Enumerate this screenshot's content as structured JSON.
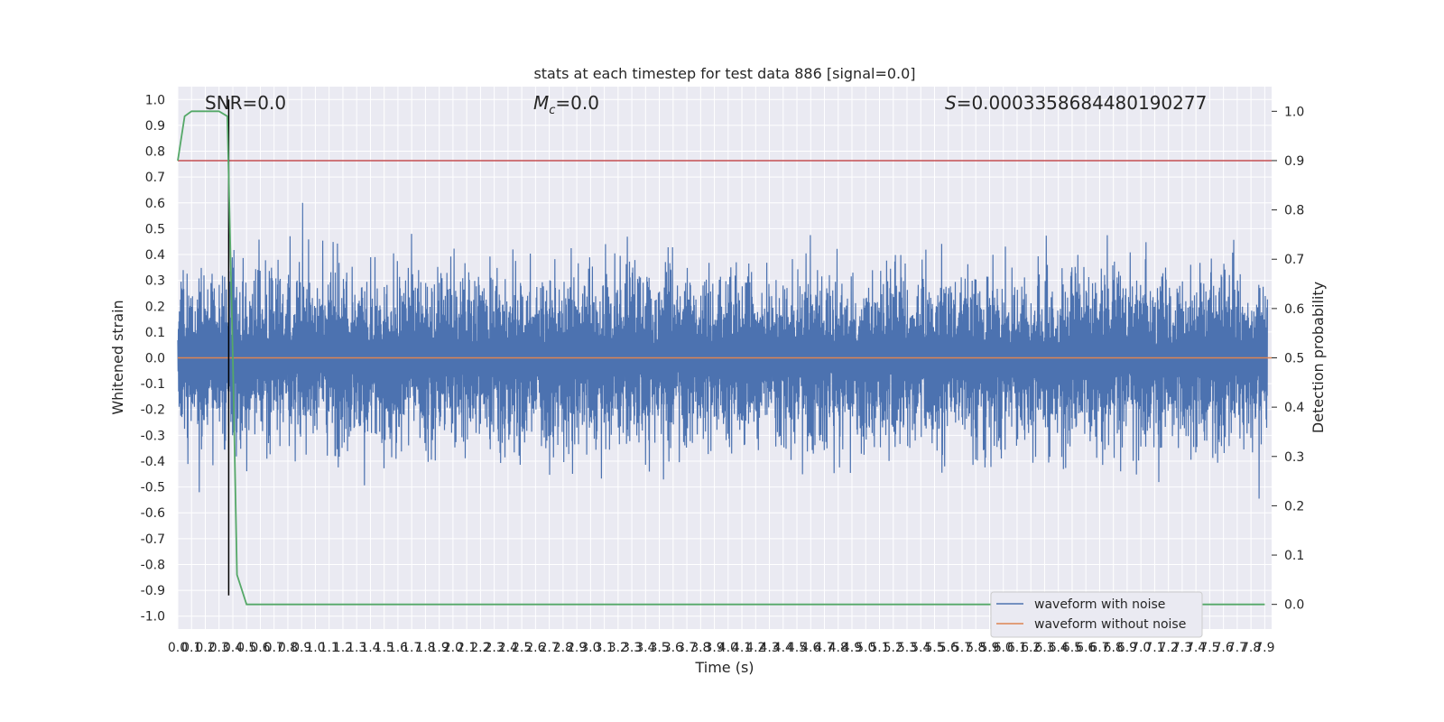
{
  "chart_data": {
    "type": "line",
    "title": "stats at each timestep for test data 886 [signal=0.0]",
    "annotations": {
      "snr": "SNR=0.0",
      "mc_symbol": "M",
      "mc_subscript": "c",
      "mc_value": "=0.0",
      "s_symbol": "S",
      "s_value": "=0.0003358684480190277"
    },
    "xlabel": "Time (s)",
    "ylabel_left": "Whitened strain",
    "ylabel_right": "Detection probability",
    "xlim": [
      0.0,
      7.95
    ],
    "ylim_left": [
      -1.05,
      1.05
    ],
    "ylim_right": [
      -0.05,
      1.05
    ],
    "x_ticks": [
      "0.0",
      "0.1",
      "0.2",
      "0.3",
      "0.4",
      "0.5",
      "0.6",
      "0.7",
      "0.8",
      "0.9",
      "1.0",
      "1.1",
      "1.2",
      "1.3",
      "1.4",
      "1.5",
      "1.6",
      "1.7",
      "1.8",
      "1.9",
      "2.0",
      "2.1",
      "2.2",
      "2.3",
      "2.4",
      "2.5",
      "2.6",
      "2.7",
      "2.8",
      "2.9",
      "3.0",
      "3.1",
      "3.2",
      "3.3",
      "3.4",
      "3.5",
      "3.6",
      "3.7",
      "3.8",
      "3.9",
      "4.0",
      "4.1",
      "4.2",
      "4.3",
      "4.4",
      "4.5",
      "4.6",
      "4.7",
      "4.8",
      "4.9",
      "5.0",
      "5.1",
      "5.2",
      "5.3",
      "5.4",
      "5.5",
      "5.6",
      "5.7",
      "5.8",
      "5.9",
      "6.0",
      "6.1",
      "6.2",
      "6.3",
      "6.4",
      "6.5",
      "6.6",
      "6.7",
      "6.8",
      "6.9",
      "7.0",
      "7.1",
      "7.2",
      "7.3",
      "7.4",
      "7.5",
      "7.6",
      "7.7",
      "7.8",
      "7.9"
    ],
    "y_ticks_left": [
      "1.0",
      "0.9",
      "0.8",
      "0.7",
      "0.6",
      "0.5",
      "0.4",
      "0.3",
      "0.2",
      "0.1",
      "0.0",
      "-0.1",
      "-0.2",
      "-0.3",
      "-0.4",
      "-0.5",
      "-0.6",
      "-0.7",
      "-0.8",
      "-0.9",
      "-1.0"
    ],
    "y_ticks_right": [
      "1.0",
      "0.9",
      "0.8",
      "0.7",
      "0.6",
      "0.5",
      "0.4",
      "0.3",
      "0.2",
      "0.1",
      "0.0"
    ],
    "grid": true,
    "series": [
      {
        "name": "waveform with noise",
        "color": "#4c72b0",
        "axis": "left",
        "description_range": [
          -0.92,
          1.0
        ]
      },
      {
        "name": "waveform without noise",
        "color": "#dd8452",
        "axis": "left",
        "x": [
          0.0,
          7.95
        ],
        "y": [
          0.0,
          0.0
        ]
      },
      {
        "color": "#55a868",
        "axis": "right",
        "x": [
          0.0,
          0.05,
          0.1,
          0.2,
          0.3,
          0.36,
          0.4,
          0.43,
          0.5,
          7.9
        ],
        "y": [
          0.9,
          0.99,
          1.0,
          1.0,
          1.0,
          0.99,
          0.5,
          0.06,
          0.0,
          0.0
        ]
      }
    ],
    "threshold": {
      "value": 0.9,
      "axis": "right",
      "color": "#c44e52"
    },
    "marker_line": {
      "x": 0.37,
      "y_range": [
        -0.92,
        1.0
      ],
      "color": "#000000"
    },
    "legend": {
      "position": "lower-right"
    }
  }
}
